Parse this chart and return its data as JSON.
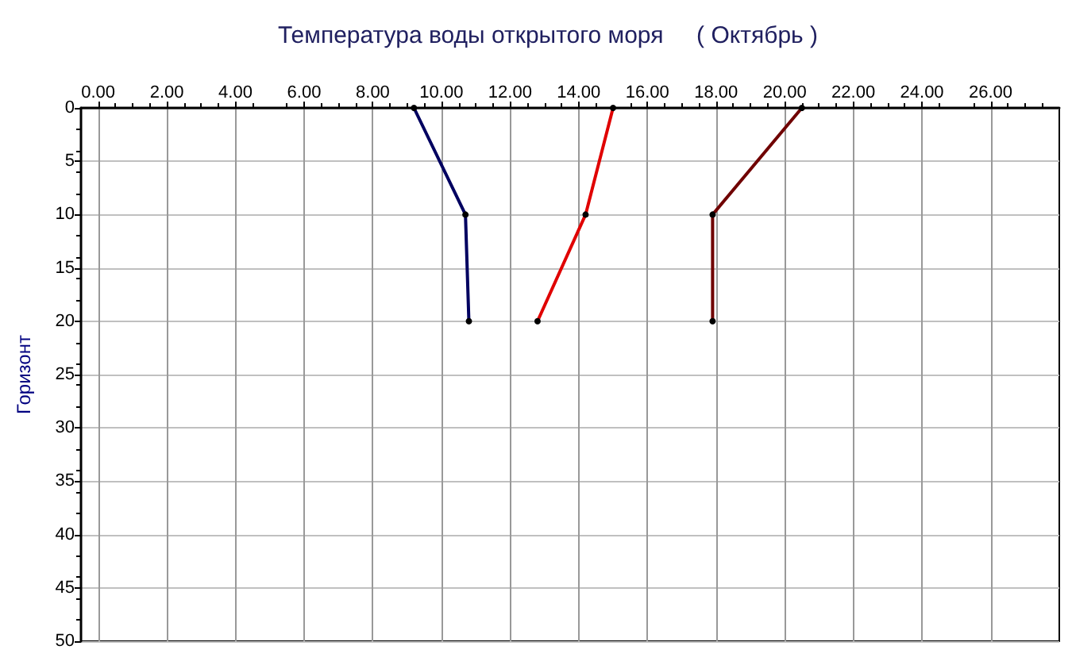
{
  "chart_data": {
    "type": "line",
    "title": "Температура воды открытого моря     ( Октябрь )",
    "ylabel": "Горизонт",
    "xlim": [
      -0.5,
      28
    ],
    "xticks": [
      {
        "value": 0,
        "label": "0.00"
      },
      {
        "value": 2,
        "label": "2.00"
      },
      {
        "value": 4,
        "label": "4.00"
      },
      {
        "value": 6,
        "label": "6.00"
      },
      {
        "value": 8,
        "label": "8.00"
      },
      {
        "value": 10,
        "label": "10.00"
      },
      {
        "value": 12,
        "label": "12.00"
      },
      {
        "value": 14,
        "label": "14.00"
      },
      {
        "value": 16,
        "label": "16.00"
      },
      {
        "value": 18,
        "label": "18.00"
      },
      {
        "value": 20,
        "label": "20.00"
      },
      {
        "value": 22,
        "label": "22.00"
      },
      {
        "value": 24,
        "label": "24.00"
      },
      {
        "value": 26,
        "label": "26.00"
      }
    ],
    "ylim": [
      50,
      0
    ],
    "yticks": [
      0,
      5,
      10,
      15,
      20,
      25,
      30,
      35,
      40,
      45,
      50
    ],
    "series": [
      {
        "color": "#000060",
        "x": [
          9.2,
          10.7,
          10.8
        ],
        "values": [
          0,
          10,
          20
        ]
      },
      {
        "color": "#e00000",
        "x": [
          15.0,
          14.2,
          12.8
        ],
        "values": [
          0,
          10,
          20
        ]
      },
      {
        "color": "#700000",
        "x": [
          20.5,
          17.9,
          17.9
        ],
        "values": [
          0,
          10,
          20
        ]
      }
    ],
    "grid": true,
    "marker": "circle",
    "line_style": "solid"
  }
}
